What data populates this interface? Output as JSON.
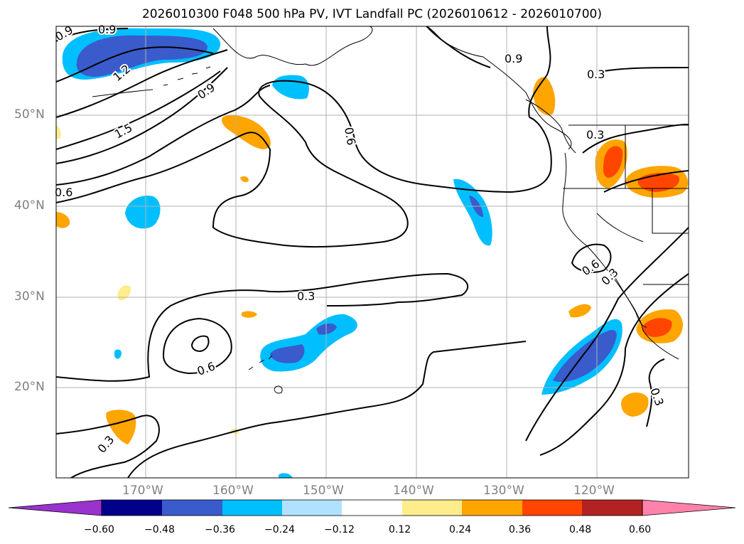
{
  "title": "2026010300 F048 500 hPa PV, IVT Landfall PC (2026010612 - 2026010700)",
  "lat_labels": [
    "50°N",
    "40°N",
    "30°N",
    "20°N"
  ],
  "lon_labels": [
    "170°W",
    "160°W",
    "150°W",
    "140°W",
    "130°W",
    "120°W"
  ],
  "contour_labels": [
    "0.9",
    "0.9",
    "1.2",
    "0.9",
    "1.5",
    "0.6",
    "0.6",
    "0.9",
    "0.3",
    "0.3",
    "0.3",
    "0.6",
    "0.3",
    "0.6",
    "0.3",
    "0.3"
  ],
  "colorbar": {
    "tick_labels": [
      "−0.60",
      "−0.48",
      "−0.36",
      "−0.24",
      "−0.12",
      "0.12",
      "0.24",
      "0.36",
      "0.48",
      "0.60"
    ],
    "colors": [
      "#9a32cd",
      "#00008b",
      "#3a5bcc",
      "#00bfff",
      "#b0e2ff",
      "#ffffff",
      "#ffec8b",
      "#ffa500",
      "#ff4500",
      "#b22222",
      "#ff82ab"
    ]
  }
}
